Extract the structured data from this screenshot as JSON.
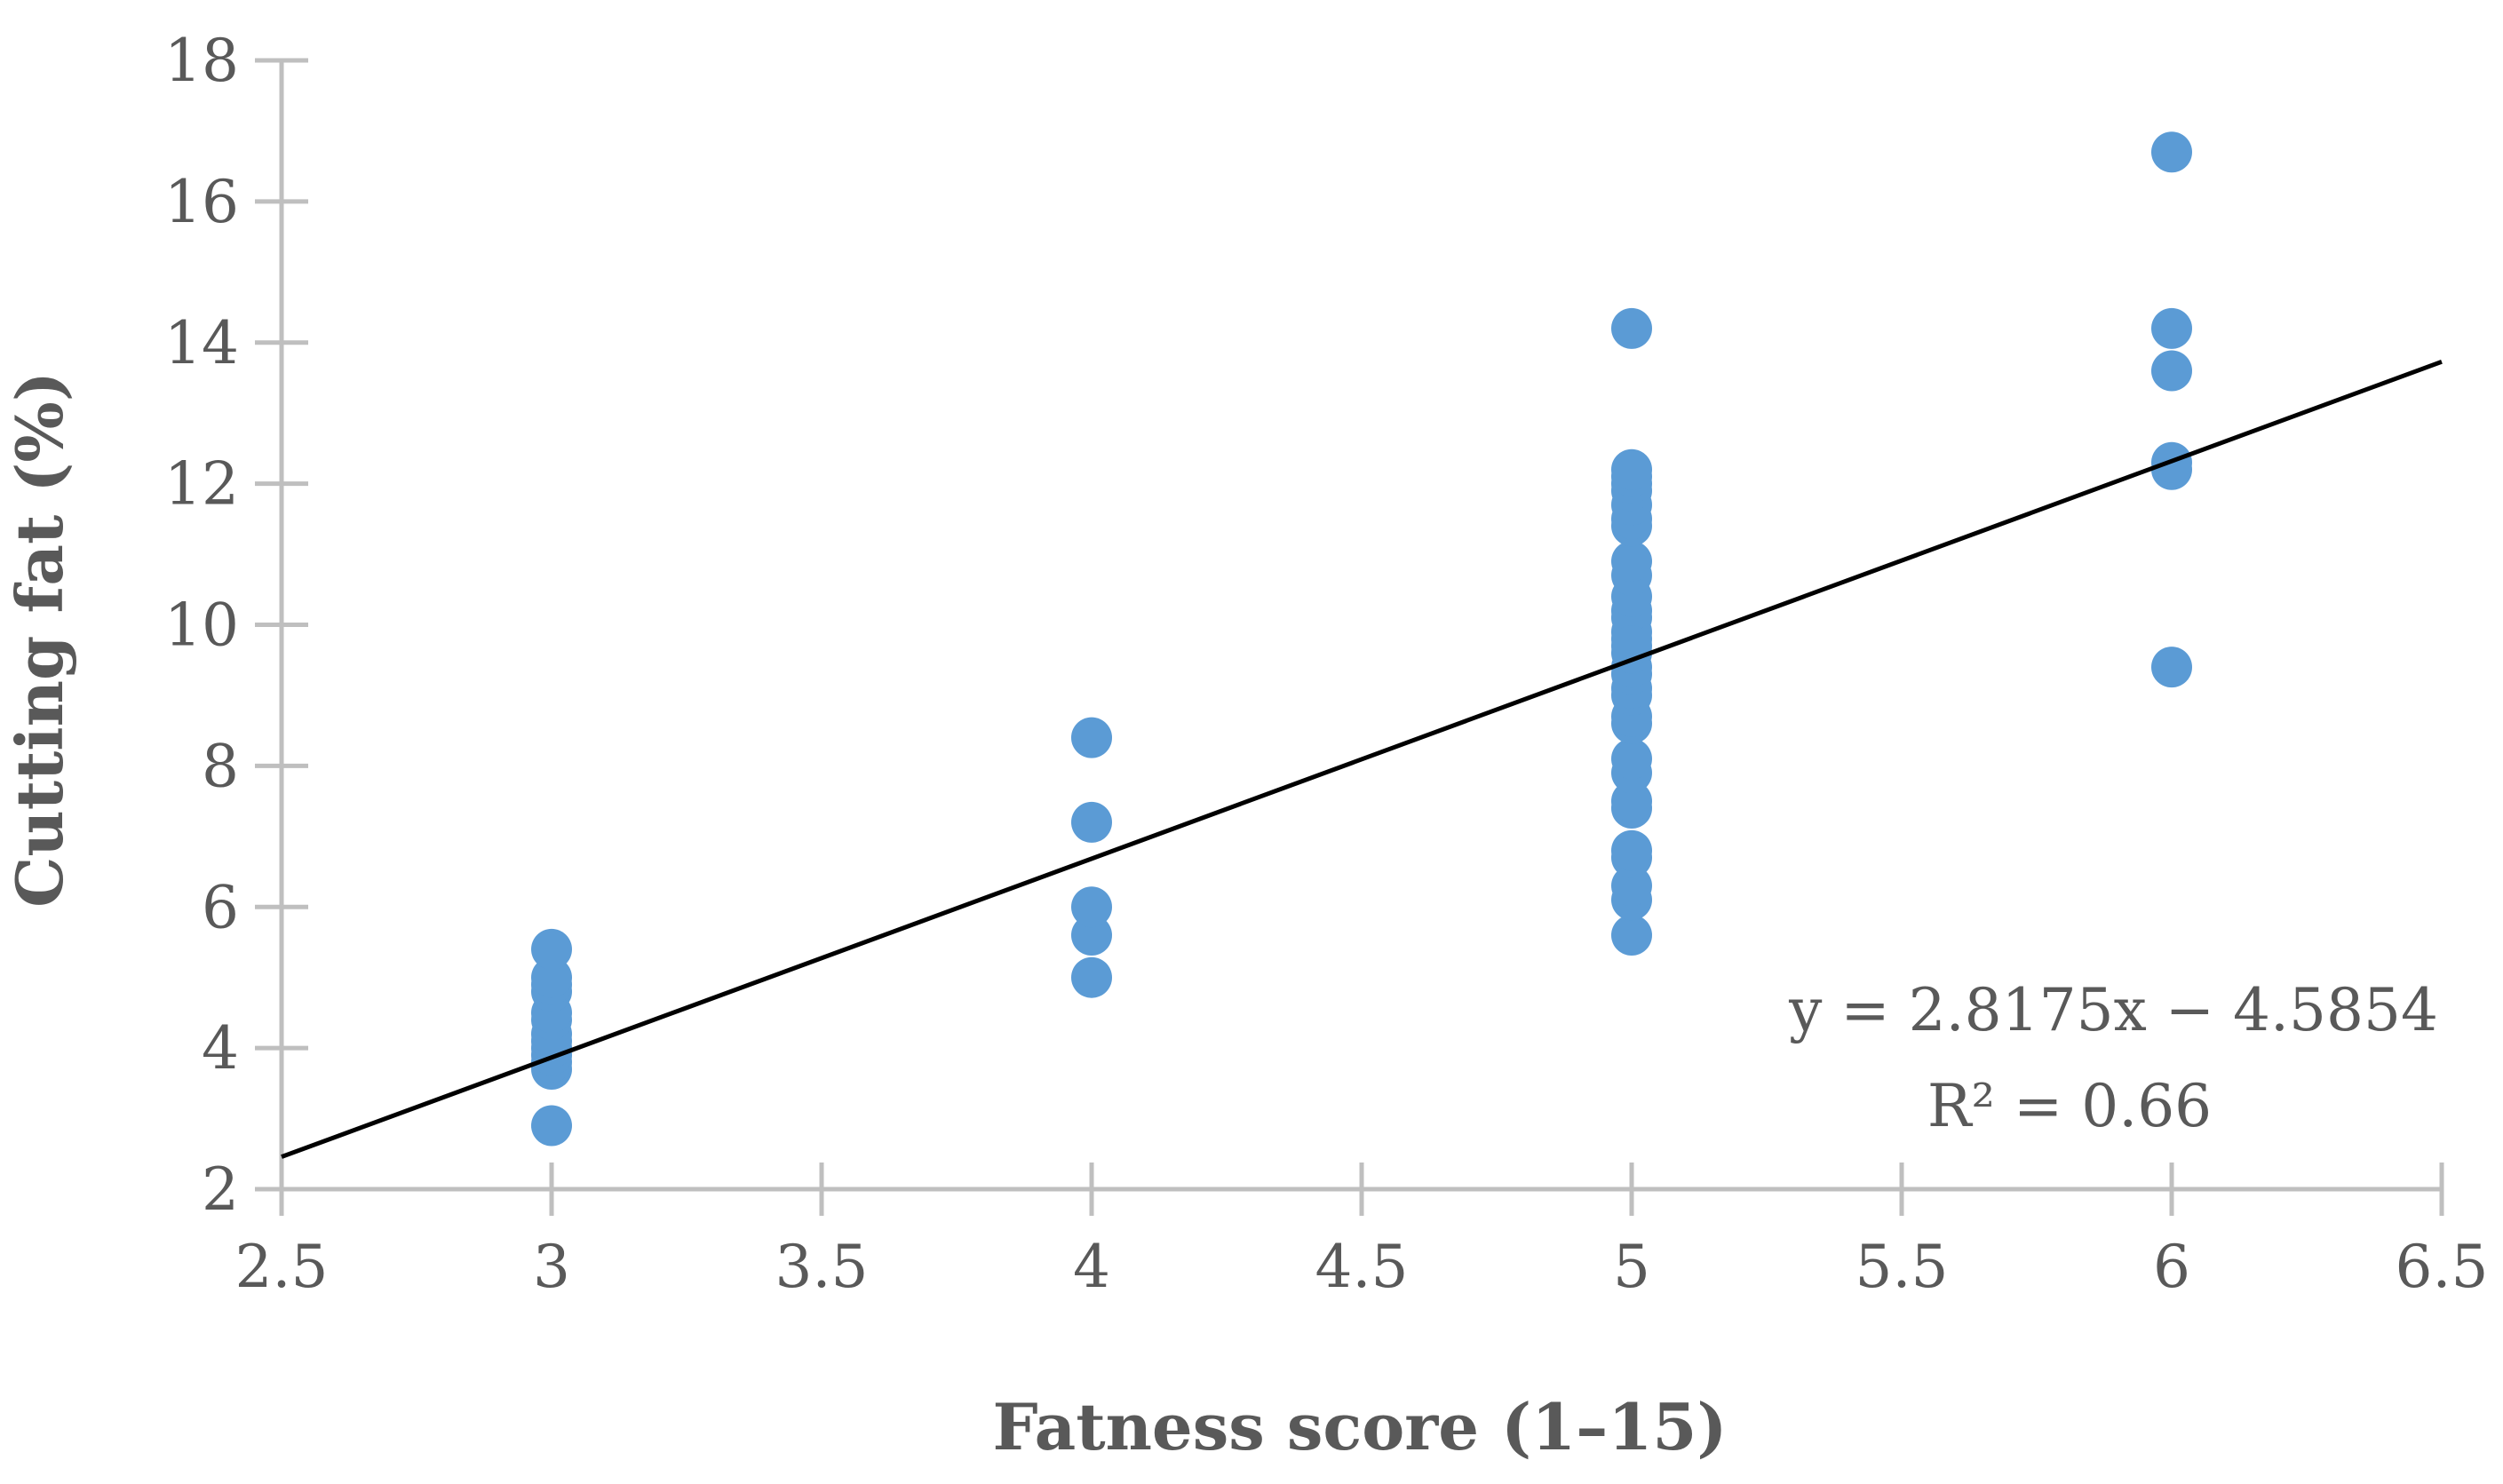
{
  "chart_data": {
    "type": "scatter",
    "xlabel": "Fatness score (1–15)",
    "ylabel": "Cutting fat (%)",
    "xlim": [
      2.5,
      6.5
    ],
    "ylim": [
      2,
      18
    ],
    "x_ticks": [
      "2.5",
      "3",
      "3.5",
      "4",
      "4.5",
      "5",
      "5.5",
      "6",
      "6.5"
    ],
    "y_ticks": [
      "2",
      "4",
      "6",
      "8",
      "10",
      "12",
      "14",
      "16",
      "18"
    ],
    "grid": false,
    "legend": "none",
    "point_color": "#5b9bd5",
    "trendline_color": "#000000",
    "series": [
      {
        "x": [
          3,
          3,
          3,
          3,
          3,
          3,
          3,
          3,
          3,
          3,
          3,
          3,
          3,
          4,
          4,
          4,
          4,
          4,
          5,
          5,
          5,
          5,
          5,
          5,
          5,
          5,
          5,
          5,
          5,
          5,
          5,
          5,
          5,
          5,
          5,
          5,
          5,
          5,
          5,
          5,
          5,
          5,
          5,
          5,
          5,
          5,
          5,
          5,
          5,
          5,
          6,
          6,
          6,
          6,
          6,
          6
        ],
        "y": [
          2.9,
          3.7,
          3.8,
          3.9,
          4.0,
          4.1,
          4.2,
          4.4,
          4.5,
          4.8,
          4.9,
          5.0,
          5.4,
          5.0,
          5.6,
          6.0,
          7.2,
          8.4,
          5.6,
          6.1,
          6.3,
          6.7,
          6.8,
          7.4,
          7.5,
          7.9,
          8.1,
          8.6,
          8.7,
          9.0,
          9.1,
          9.3,
          9.4,
          9.6,
          9.8,
          9.9,
          10.1,
          10.2,
          10.4,
          10.7,
          10.9,
          11.4,
          11.5,
          11.7,
          11.9,
          12.0,
          12.1,
          12.2,
          9.7,
          14.2,
          9.4,
          12.2,
          12.3,
          13.6,
          14.2,
          16.7
        ]
      }
    ],
    "trendline": {
      "slope": 2.8175,
      "intercept": -4.5854
    },
    "annotation": {
      "equation": "y = 2.8175x − 4.5854",
      "r_squared": "R² = 0.66"
    }
  }
}
